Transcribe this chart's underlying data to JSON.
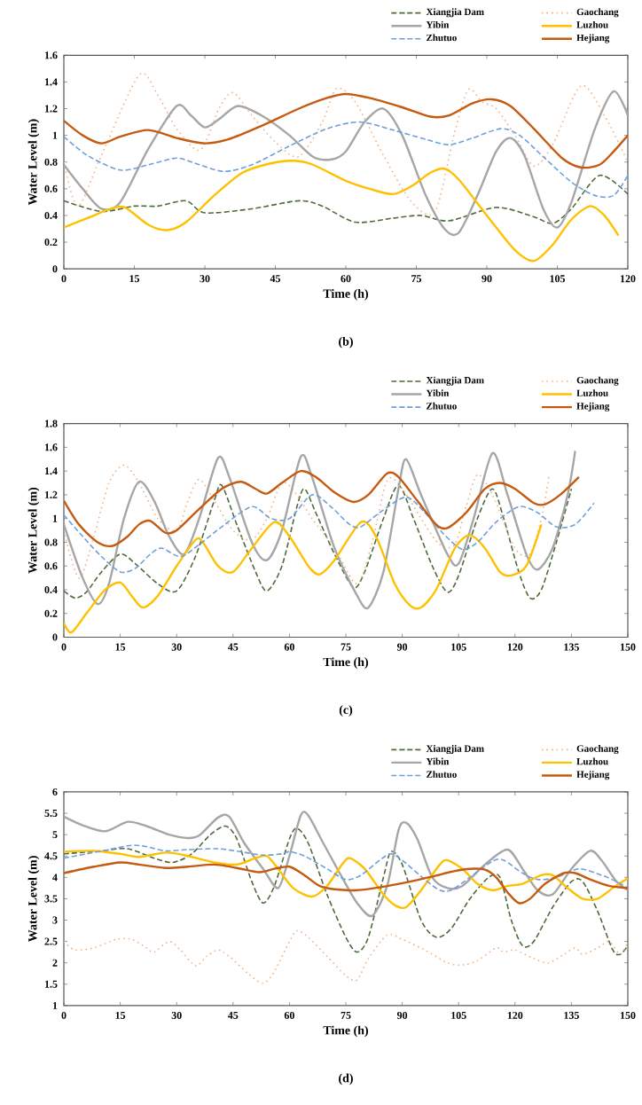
{
  "chart_data": [
    {
      "type": "line",
      "xlabel": "Time (h)",
      "ylabel": "Water Level (m)",
      "annotations": [
        "(b)"
      ],
      "xlim": [
        0,
        120
      ],
      "ylim": [
        0,
        1.6
      ],
      "xticks": [
        0,
        15,
        30,
        45,
        60,
        75,
        90,
        105,
        120
      ],
      "yticks": [
        0,
        0.2,
        0.4,
        0.6,
        0.8,
        1,
        1.2,
        1.4,
        1.6
      ],
      "legend": "top right",
      "series": [
        {
          "name": "Xiangjia Dam",
          "color": "#4e6b3a",
          "line_style": "dashed",
          "x": [
            0,
            8,
            15,
            20,
            26,
            30,
            40,
            50,
            55,
            62,
            70,
            76,
            82,
            92,
            100,
            104,
            108,
            114,
            120
          ],
          "values": [
            0.51,
            0.43,
            0.47,
            0.47,
            0.51,
            0.42,
            0.45,
            0.51,
            0.47,
            0.35,
            0.38,
            0.4,
            0.36,
            0.46,
            0.39,
            0.34,
            0.45,
            0.7,
            0.56
          ]
        },
        {
          "name": "Gaochang",
          "color": "#f4b183",
          "line_style": "dotted",
          "x": [
            0,
            3,
            8,
            16,
            20,
            24,
            29,
            33,
            36,
            40,
            45,
            50,
            55,
            58,
            62,
            68,
            74,
            79,
            83,
            86,
            89,
            92,
            96,
            100,
            104,
            110,
            115,
            120
          ],
          "values": [
            0.8,
            0.47,
            0.85,
            1.45,
            1.3,
            1.05,
            0.89,
            1.2,
            1.32,
            1.15,
            0.95,
            0.84,
            1.1,
            1.35,
            1.25,
            0.85,
            0.5,
            0.43,
            1.0,
            1.34,
            1.25,
            1.2,
            1.0,
            0.77,
            0.93,
            1.37,
            1.15,
            0.8
          ]
        },
        {
          "name": "Yibin",
          "color": "#a6a6a6",
          "line_style": "solid",
          "x": [
            0,
            4,
            8,
            12,
            18,
            24,
            27,
            30,
            33,
            37,
            42,
            48,
            53,
            57,
            60,
            64,
            68,
            72,
            77,
            81,
            84,
            88,
            92,
            95,
            98,
            102,
            105,
            108,
            113,
            117,
            120
          ],
          "values": [
            0.78,
            0.6,
            0.45,
            0.5,
            0.9,
            1.22,
            1.15,
            1.06,
            1.12,
            1.22,
            1.15,
            1.0,
            0.84,
            0.82,
            0.88,
            1.1,
            1.2,
            1.0,
            0.55,
            0.3,
            0.27,
            0.55,
            0.88,
            0.98,
            0.85,
            0.45,
            0.31,
            0.5,
            1.05,
            1.33,
            1.15
          ]
        },
        {
          "name": "Luzhou",
          "color": "#ffc000",
          "line_style": "solid",
          "x": [
            0,
            5,
            10,
            13,
            18,
            22,
            26,
            32,
            38,
            44,
            49,
            53,
            60,
            65,
            70,
            74,
            78,
            81,
            84,
            90,
            96,
            100,
            104,
            108,
            112,
            115,
            118
          ],
          "values": [
            0.31,
            0.38,
            0.45,
            0.46,
            0.33,
            0.29,
            0.35,
            0.55,
            0.72,
            0.79,
            0.81,
            0.78,
            0.66,
            0.6,
            0.56,
            0.62,
            0.72,
            0.75,
            0.67,
            0.4,
            0.14,
            0.06,
            0.18,
            0.37,
            0.47,
            0.4,
            0.25
          ]
        },
        {
          "name": "Zhutuo",
          "color": "#6f9fd8",
          "line_style": "dashed",
          "x": [
            0,
            5,
            12,
            18,
            24,
            28,
            34,
            40,
            48,
            56,
            63,
            70,
            77,
            82,
            87,
            93,
            97,
            102,
            108,
            113,
            117,
            120
          ],
          "values": [
            0.99,
            0.85,
            0.74,
            0.78,
            0.83,
            0.79,
            0.73,
            0.78,
            0.92,
            1.05,
            1.1,
            1.04,
            0.97,
            0.93,
            0.98,
            1.05,
            1.0,
            0.84,
            0.65,
            0.55,
            0.55,
            0.7
          ]
        },
        {
          "name": "Hejiang",
          "color": "#c55a11",
          "line_style": "solid",
          "x": [
            0,
            4,
            8,
            12,
            18,
            24,
            30,
            35,
            42,
            50,
            56,
            60,
            65,
            72,
            78,
            82,
            87,
            91,
            95,
            100,
            106,
            110,
            114,
            117,
            120
          ],
          "values": [
            1.11,
            1.0,
            0.94,
            0.99,
            1.04,
            0.98,
            0.94,
            0.97,
            1.07,
            1.2,
            1.28,
            1.31,
            1.28,
            1.21,
            1.14,
            1.15,
            1.24,
            1.27,
            1.22,
            1.05,
            0.83,
            0.76,
            0.78,
            0.88,
            1.0
          ]
        }
      ]
    },
    {
      "type": "line",
      "xlabel": "Time (h)",
      "ylabel": "Water Level (m)",
      "annotations": [
        "(c)"
      ],
      "xlim": [
        0,
        150
      ],
      "ylim": [
        0,
        1.8
      ],
      "xticks": [
        0,
        15,
        30,
        45,
        60,
        75,
        90,
        105,
        120,
        135,
        150
      ],
      "yticks": [
        0,
        0.2,
        0.4,
        0.6,
        0.8,
        1,
        1.2,
        1.4,
        1.6,
        1.8
      ],
      "legend": "top right",
      "series": [
        {
          "name": "Xiangjia Dam",
          "color": "#4e6b3a",
          "line_style": "dashed",
          "x": [
            0,
            3,
            6,
            10,
            15,
            19,
            25,
            30,
            35,
            40,
            42,
            46,
            51,
            54,
            58,
            62,
            64,
            67,
            72,
            77,
            80,
            85,
            89,
            93,
            98,
            102,
            105,
            110,
            114,
            117,
            121,
            124,
            127,
            131,
            135
          ],
          "values": [
            0.39,
            0.33,
            0.38,
            0.55,
            0.7,
            0.62,
            0.45,
            0.39,
            0.68,
            1.15,
            1.28,
            0.95,
            0.55,
            0.39,
            0.6,
            1.1,
            1.25,
            1.05,
            0.7,
            0.42,
            0.55,
            1.0,
            1.28,
            1.0,
            0.6,
            0.38,
            0.52,
            1.0,
            1.25,
            1.0,
            0.55,
            0.33,
            0.4,
            0.8,
            1.25
          ]
        },
        {
          "name": "Gaochang",
          "color": "#f4b183",
          "line_style": "dotted",
          "x": [
            0,
            4,
            8,
            12,
            16,
            20,
            25,
            30,
            33,
            36,
            40,
            45,
            50,
            54,
            58,
            62,
            66,
            72,
            78,
            82,
            86,
            90,
            96,
            100,
            104,
            107,
            110,
            114,
            120,
            124,
            127,
            129
          ],
          "values": [
            0.9,
            0.5,
            0.85,
            1.3,
            1.45,
            1.3,
            1.0,
            0.9,
            1.15,
            1.33,
            1.15,
            0.9,
            0.82,
            1.0,
            1.3,
            1.2,
            1.0,
            0.75,
            0.45,
            0.8,
            1.32,
            1.25,
            0.95,
            0.78,
            0.78,
            1.1,
            1.37,
            1.2,
            0.75,
            0.7,
            1.0,
            1.35
          ]
        },
        {
          "name": "Yibin",
          "color": "#a6a6a6",
          "line_style": "solid",
          "x": [
            0,
            5,
            9,
            12,
            16,
            20,
            24,
            28,
            32,
            36,
            41,
            44,
            50,
            54,
            58,
            63,
            66,
            72,
            78,
            81,
            85,
            89,
            91,
            95,
            102,
            105,
            109,
            114,
            118,
            123,
            126,
            130,
            134,
            136
          ],
          "values": [
            0.95,
            0.5,
            0.28,
            0.45,
            1.0,
            1.31,
            1.15,
            0.85,
            0.7,
            1.0,
            1.51,
            1.35,
            0.8,
            0.65,
            0.9,
            1.52,
            1.35,
            0.75,
            0.35,
            0.25,
            0.55,
            1.25,
            1.5,
            1.2,
            0.7,
            0.62,
            1.0,
            1.55,
            1.2,
            0.7,
            0.57,
            0.75,
            1.2,
            1.57
          ]
        },
        {
          "name": "Luzhou",
          "color": "#ffc000",
          "line_style": "solid",
          "x": [
            0,
            2,
            6,
            11,
            15,
            18,
            21,
            25,
            30,
            35,
            37,
            41,
            45,
            50,
            56,
            60,
            65,
            68,
            72,
            79,
            83,
            88,
            92,
            95,
            99,
            104,
            108,
            112,
            116,
            119,
            123,
            127
          ],
          "values": [
            0.12,
            0.04,
            0.2,
            0.4,
            0.46,
            0.35,
            0.25,
            0.35,
            0.6,
            0.82,
            0.8,
            0.6,
            0.55,
            0.75,
            0.97,
            0.85,
            0.6,
            0.53,
            0.65,
            0.97,
            0.85,
            0.45,
            0.27,
            0.25,
            0.4,
            0.75,
            0.86,
            0.75,
            0.55,
            0.52,
            0.6,
            0.95
          ]
        },
        {
          "name": "Zhutuo",
          "color": "#6f9fd8",
          "line_style": "dashed",
          "x": [
            0,
            5,
            10,
            15,
            19,
            23,
            26,
            31,
            36,
            42,
            50,
            55,
            60,
            66,
            71,
            76,
            79,
            84,
            91,
            96,
            101,
            106,
            110,
            115,
            121,
            126,
            131,
            136,
            141
          ],
          "values": [
            1.03,
            0.85,
            0.68,
            0.55,
            0.58,
            0.7,
            0.75,
            0.68,
            0.78,
            0.93,
            1.1,
            1.0,
            1.0,
            1.2,
            1.1,
            0.95,
            0.93,
            1.05,
            1.18,
            1.05,
            0.87,
            0.74,
            0.8,
            0.97,
            1.1,
            1.05,
            0.93,
            0.95,
            1.13
          ]
        },
        {
          "name": "Hejiang",
          "color": "#c55a11",
          "line_style": "solid",
          "x": [
            0,
            4,
            9,
            13,
            17,
            20,
            23,
            27,
            30,
            36,
            42,
            47,
            51,
            54,
            58,
            63,
            67,
            72,
            77,
            81,
            86,
            89,
            94,
            99,
            102,
            107,
            112,
            116,
            120,
            125,
            128,
            132,
            137
          ],
          "values": [
            1.15,
            0.95,
            0.8,
            0.77,
            0.85,
            0.95,
            0.98,
            0.88,
            0.9,
            1.08,
            1.25,
            1.31,
            1.25,
            1.21,
            1.3,
            1.4,
            1.35,
            1.22,
            1.14,
            1.2,
            1.38,
            1.35,
            1.15,
            0.95,
            0.92,
            1.05,
            1.25,
            1.3,
            1.25,
            1.13,
            1.12,
            1.2,
            1.35
          ]
        }
      ]
    },
    {
      "type": "line",
      "xlabel": "Time (h)",
      "ylabel": "Water Level (m)",
      "annotations": [
        "(d)"
      ],
      "xlim": [
        0,
        150
      ],
      "ylim": [
        1,
        6
      ],
      "xticks": [
        0,
        15,
        30,
        45,
        60,
        75,
        90,
        105,
        120,
        135,
        150
      ],
      "yticks": [
        1,
        1.5,
        2,
        2.5,
        3,
        3.5,
        4,
        4.5,
        5,
        5.5,
        6
      ],
      "legend": "top right",
      "series": [
        {
          "name": "Xiangjia Dam",
          "color": "#4e6b3a",
          "line_style": "dashed",
          "x": [
            0,
            10,
            17,
            24,
            29,
            34,
            39,
            43,
            46,
            50,
            53,
            56,
            60,
            62,
            65,
            70,
            75,
            78,
            81,
            85,
            87,
            90,
            95,
            99,
            103,
            108,
            113,
            116,
            119,
            122,
            125,
            130,
            135,
            138,
            142,
            146,
            148,
            150
          ],
          "values": [
            4.55,
            4.62,
            4.67,
            4.45,
            4.35,
            4.55,
            5.0,
            5.2,
            4.9,
            3.9,
            3.4,
            3.8,
            4.9,
            5.15,
            4.8,
            3.6,
            2.6,
            2.25,
            2.6,
            4.0,
            4.6,
            4.3,
            3.0,
            2.6,
            2.8,
            3.5,
            4.0,
            4.0,
            3.0,
            2.4,
            2.5,
            3.3,
            3.9,
            3.9,
            3.2,
            2.3,
            2.2,
            2.4
          ]
        },
        {
          "name": "Gaochang",
          "color": "#f4b183",
          "line_style": "dotted",
          "x": [
            0,
            3,
            8,
            14,
            18,
            22,
            24,
            28,
            31,
            35,
            38,
            41,
            44,
            49,
            53,
            56,
            60,
            62,
            65,
            70,
            75,
            78,
            81,
            86,
            90,
            96,
            102,
            106,
            110,
            115,
            117,
            120,
            125,
            129,
            133,
            136,
            138,
            142,
            145,
            148,
            150
          ],
          "values": [
            2.5,
            2.3,
            2.35,
            2.55,
            2.55,
            2.35,
            2.25,
            2.5,
            2.3,
            1.93,
            2.15,
            2.3,
            2.15,
            1.75,
            1.52,
            1.8,
            2.5,
            2.75,
            2.6,
            2.15,
            1.7,
            1.6,
            2.1,
            2.65,
            2.55,
            2.3,
            2.0,
            1.95,
            2.05,
            2.35,
            2.25,
            2.3,
            2.1,
            2.0,
            2.2,
            2.35,
            2.2,
            2.35,
            2.5,
            2.2,
            2.5
          ]
        },
        {
          "name": "Yibin",
          "color": "#a6a6a6",
          "line_style": "solid",
          "x": [
            0,
            5,
            11,
            17,
            22,
            28,
            33,
            36,
            41,
            44,
            48,
            53,
            57,
            60,
            63,
            65,
            69,
            74,
            78,
            82,
            86,
            89,
            91,
            94,
            98,
            102,
            106,
            112,
            118,
            122,
            126,
            130,
            135,
            140,
            143,
            147,
            150
          ],
          "values": [
            5.42,
            5.22,
            5.08,
            5.3,
            5.2,
            5.0,
            4.92,
            4.98,
            5.4,
            5.42,
            4.8,
            4.2,
            3.75,
            4.5,
            5.45,
            5.45,
            4.8,
            4.0,
            3.4,
            3.1,
            3.8,
            5.1,
            5.28,
            4.9,
            4.0,
            3.75,
            3.8,
            4.3,
            4.65,
            4.2,
            3.7,
            3.6,
            4.2,
            4.62,
            4.4,
            3.9,
            3.7
          ]
        },
        {
          "name": "Luzhou",
          "color": "#ffc000",
          "line_style": "solid",
          "x": [
            0,
            8,
            15,
            20,
            27,
            32,
            40,
            46,
            51,
            54,
            57,
            61,
            66,
            70,
            74,
            76,
            80,
            85,
            88,
            91,
            95,
            100,
            102,
            106,
            110,
            114,
            118,
            122,
            127,
            130,
            134,
            138,
            142,
            146,
            150
          ],
          "values": [
            4.6,
            4.62,
            4.55,
            4.48,
            4.58,
            4.52,
            4.35,
            4.3,
            4.45,
            4.5,
            4.2,
            3.75,
            3.55,
            3.8,
            4.3,
            4.45,
            4.2,
            3.6,
            3.35,
            3.3,
            3.7,
            4.3,
            4.4,
            4.2,
            3.85,
            3.7,
            3.8,
            3.85,
            4.05,
            4.05,
            3.75,
            3.5,
            3.5,
            3.75,
            3.98
          ]
        },
        {
          "name": "Zhutuo",
          "color": "#6f9fd8",
          "line_style": "dashed",
          "x": [
            0,
            6,
            12,
            18,
            22,
            27,
            33,
            41,
            47,
            53,
            58,
            60,
            64,
            70,
            75,
            79,
            84,
            87,
            90,
            96,
            100,
            103,
            108,
            114,
            117,
            122,
            126,
            131,
            137,
            143,
            147,
            150
          ],
          "values": [
            4.45,
            4.55,
            4.65,
            4.75,
            4.72,
            4.62,
            4.65,
            4.67,
            4.6,
            4.52,
            4.55,
            4.6,
            4.5,
            4.2,
            3.95,
            4.05,
            4.4,
            4.55,
            4.4,
            3.95,
            3.7,
            3.7,
            4.0,
            4.38,
            4.4,
            4.1,
            3.95,
            4.0,
            4.2,
            4.05,
            3.9,
            3.75
          ]
        },
        {
          "name": "Hejiang",
          "color": "#c55a11",
          "line_style": "solid",
          "x": [
            0,
            8,
            15,
            20,
            27,
            33,
            40,
            46,
            52,
            56,
            60,
            64,
            68,
            72,
            78,
            85,
            92,
            98,
            104,
            108,
            112,
            115,
            118,
            121,
            124,
            128,
            133,
            136,
            140,
            145,
            150
          ],
          "values": [
            4.1,
            4.25,
            4.35,
            4.3,
            4.22,
            4.25,
            4.3,
            4.22,
            4.12,
            4.2,
            4.25,
            4.05,
            3.8,
            3.72,
            3.7,
            3.78,
            3.9,
            4.02,
            4.15,
            4.2,
            4.18,
            4.0,
            3.65,
            3.4,
            3.5,
            3.85,
            4.1,
            4.1,
            3.95,
            3.8,
            3.75
          ]
        }
      ]
    }
  ]
}
